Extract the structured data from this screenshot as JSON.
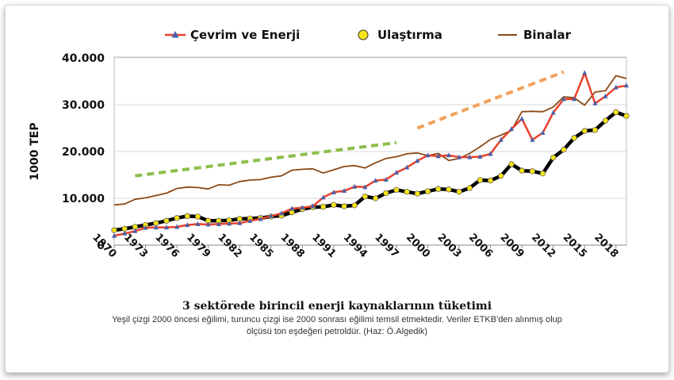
{
  "caption": {
    "title": "3 sektörede birincil enerji kaynaklarının tüketimi",
    "line1": "Yeşil çizgi 2000 öncesi eğilimi, turuncu çizgi ise 2000 sonrası eğilimi temsil etmektedir. Veriler ETKB'den alınmış olup",
    "line2": "ölçüsü ton eşdeğeri petroldür. (Haz: Ö.Algedik)"
  },
  "chart_data": {
    "type": "line",
    "ylabel": "1000 TEP",
    "ylim": [
      0,
      40000
    ],
    "yticks": [
      0,
      10000,
      20000,
      30000,
      40000
    ],
    "ytick_labels": [
      "0",
      "10.000",
      "20.000",
      "30.000",
      "40.000"
    ],
    "xlim": [
      1970,
      2019
    ],
    "xticks": [
      1970,
      1973,
      1976,
      1979,
      1982,
      1985,
      1988,
      1991,
      1994,
      1997,
      2000,
      2003,
      2006,
      2009,
      2012,
      2015,
      2018
    ],
    "grid": true,
    "legend_position": "top",
    "x": [
      1970,
      1971,
      1972,
      1973,
      1974,
      1975,
      1976,
      1977,
      1978,
      1979,
      1980,
      1981,
      1982,
      1983,
      1984,
      1985,
      1986,
      1987,
      1988,
      1989,
      1990,
      1991,
      1992,
      1993,
      1994,
      1995,
      1996,
      1997,
      1998,
      1999,
      2000,
      2001,
      2002,
      2003,
      2004,
      2005,
      2006,
      2007,
      2008,
      2009,
      2010,
      2011,
      2012,
      2013,
      2014,
      2015,
      2016,
      2017,
      2018,
      2019
    ],
    "series": [
      {
        "name": "Çevrim ve Enerji",
        "color": "#e8412c",
        "marker_color": "#4a5fa8",
        "marker": "triangle",
        "values": [
          2000,
          2500,
          3000,
          3700,
          3800,
          3800,
          3900,
          4300,
          4500,
          4400,
          4500,
          4600,
          4700,
          5200,
          5600,
          6200,
          6800,
          7800,
          8000,
          8300,
          10200,
          11300,
          11600,
          12500,
          12400,
          13800,
          14000,
          15500,
          16600,
          18000,
          19200,
          19000,
          19200,
          18800,
          18800,
          18900,
          19500,
          22500,
          24800,
          27000,
          22500,
          24000,
          28300,
          31200,
          31200,
          36800,
          30300,
          31800,
          33700,
          34100
        ]
      },
      {
        "name": "Ulaştırma",
        "color": "#000000",
        "marker_color": "#f5e416",
        "marker": "circle",
        "values": [
          3200,
          3500,
          3900,
          4300,
          4700,
          5200,
          5800,
          6200,
          6100,
          5200,
          5200,
          5300,
          5600,
          5700,
          5800,
          6100,
          6300,
          7000,
          7700,
          8100,
          8200,
          8600,
          8300,
          8500,
          10400,
          10000,
          11100,
          11800,
          11400,
          11000,
          11500,
          12000,
          11900,
          11400,
          12200,
          13900,
          13800,
          14800,
          17300,
          15900,
          15800,
          15300,
          18700,
          20400,
          22900,
          24400,
          24600,
          26600,
          28400,
          27600
        ]
      },
      {
        "name": "Binalar",
        "color": "#8b4a18",
        "marker": "none",
        "values": [
          8600,
          8800,
          9800,
          10100,
          10600,
          11100,
          12100,
          12400,
          12300,
          12000,
          12900,
          12800,
          13600,
          13900,
          14000,
          14500,
          14800,
          16000,
          16200,
          16300,
          15400,
          16100,
          16800,
          17000,
          16500,
          17600,
          18500,
          18900,
          19500,
          19700,
          19100,
          19600,
          18100,
          18500,
          19600,
          21000,
          22600,
          23500,
          24500,
          28500,
          28600,
          28500,
          29500,
          31700,
          31500,
          29900,
          32700,
          33000,
          36200,
          35600
        ]
      }
    ],
    "trend_lines": [
      {
        "name": "2000 öncesi eğilim",
        "color": "#8cbe4a",
        "x": [
          1972,
          1997
        ],
        "y": [
          14800,
          21900
        ]
      },
      {
        "name": "2000 sonrası eğilim",
        "color": "#f2a05a",
        "x": [
          1999,
          2013
        ],
        "y": [
          25000,
          37000
        ]
      }
    ]
  }
}
